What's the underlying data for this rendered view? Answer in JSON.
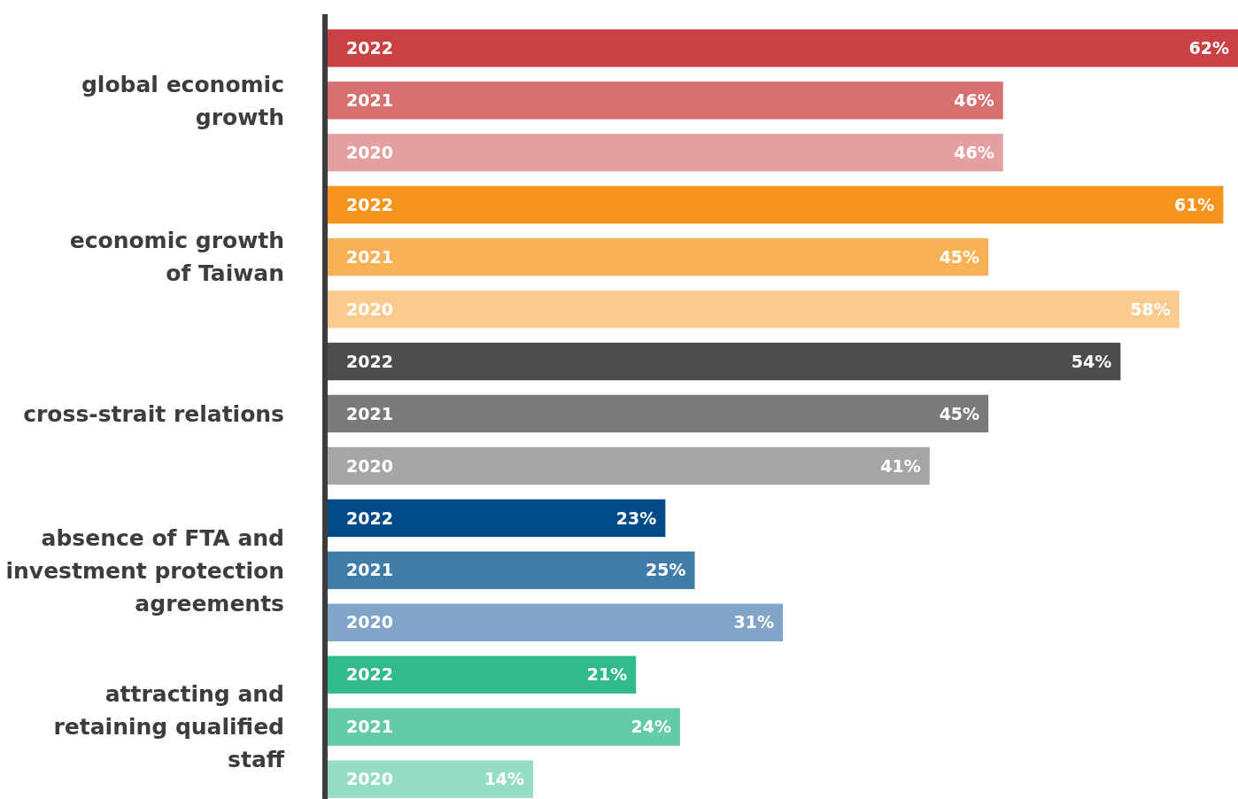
{
  "chart_data": {
    "type": "bar",
    "orientation": "horizontal",
    "categories": [
      "global economic\ngrowth",
      "economic growth\nof Taiwan",
      "cross-strait relations",
      "absence of FTA and\ninvestment protection\nagreements",
      "attracting and\nretaining qualified\nstaff"
    ],
    "series": [
      {
        "name": "2022",
        "colors": [
          "#c94143",
          "#f7941d",
          "#4d4d4f",
          "#004b87",
          "#2fbb8b"
        ],
        "values": [
          62,
          61,
          54,
          23,
          21
        ],
        "value_labels": [
          "62%",
          "61%",
          "54%",
          "23%",
          "21%"
        ]
      },
      {
        "name": "2021",
        "colors": [
          "#d77070",
          "#f8b155",
          "#7a7a7a",
          "#407ca8",
          "#63cba6"
        ],
        "values": [
          46,
          45,
          45,
          25,
          24
        ],
        "value_labels": [
          "46%",
          "45%",
          "45%",
          "25%",
          "24%"
        ]
      },
      {
        "name": "2020",
        "colors": [
          "#e4a0a0",
          "#fbcb8e",
          "#a6a6a6",
          "#80a5c8",
          "#97dcc4"
        ],
        "values": [
          46,
          58,
          41,
          31,
          14
        ],
        "value_labels": [
          "46%",
          "58%",
          "41%",
          "31%",
          "14%"
        ]
      }
    ],
    "tick_labels": "y"
  }
}
